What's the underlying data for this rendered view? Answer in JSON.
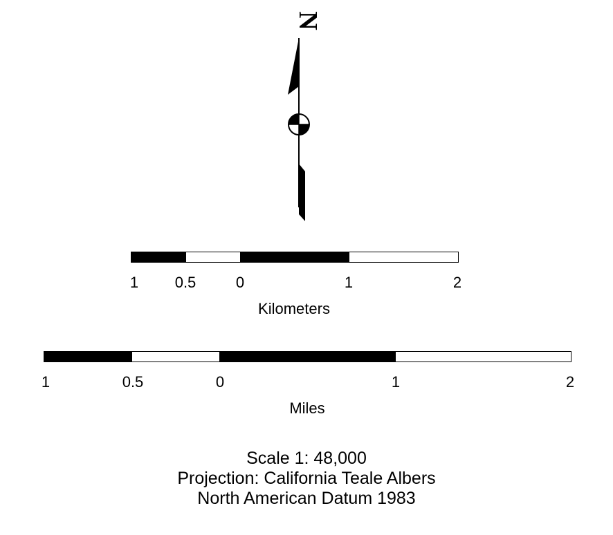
{
  "north_arrow": {
    "letter": "N",
    "icon": "north-arrow-icon"
  },
  "scale_km": {
    "tick_labels": [
      "1",
      "0.5",
      "0",
      "1",
      "2"
    ],
    "unit": "Kilometers",
    "segments": [
      "dark",
      "light",
      "dark",
      "light"
    ]
  },
  "scale_mi": {
    "tick_labels": [
      "1",
      "0.5",
      "0",
      "1",
      "2"
    ],
    "unit": "Miles",
    "segments": [
      "dark",
      "light",
      "dark",
      "light"
    ]
  },
  "footer": {
    "scale": "Scale 1: 48,000",
    "projection": "Projection: California Teale Albers",
    "datum": "North American Datum 1983"
  }
}
